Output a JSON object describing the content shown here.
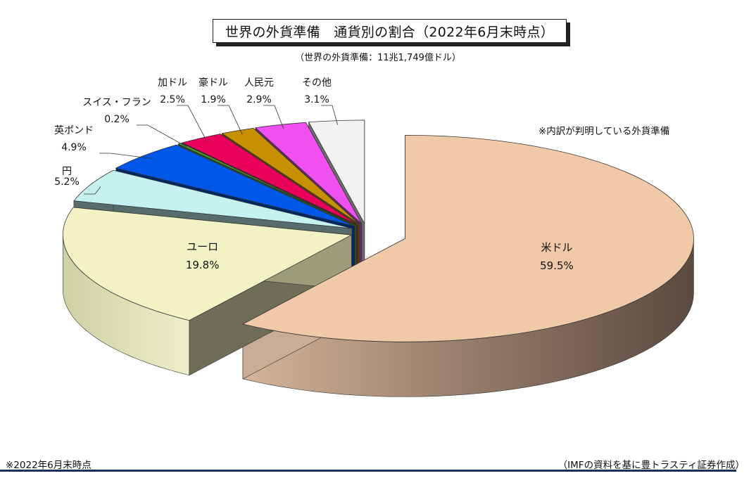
{
  "header": {
    "title": "世界の外貨準備　通貨別の割合（2022年6月末時点）",
    "subtitle": "（世界の外貨準備：11兆1,749億ドル）"
  },
  "note": "※内訳が判明している外貨準備",
  "footer": {
    "left": "※2022年6月末時点",
    "right": "（IMFの資料を基に豊トラスティ証券作成）"
  },
  "chart_data": {
    "type": "pie",
    "style": "3d-exploded",
    "unit": "%",
    "slices": [
      {
        "name": "米ドル",
        "value": 59.5,
        "value_label": "59.5%",
        "color": "#f0c9a8"
      },
      {
        "name": "ユーロ",
        "value": 19.8,
        "value_label": "19.8%",
        "color": "#f2f2c4"
      },
      {
        "name": "円",
        "value": 5.2,
        "value_label": "5.2%",
        "color": "#c5f1ef"
      },
      {
        "name": "英ポンド",
        "value": 4.9,
        "value_label": "4.9%",
        "color": "#0057e8"
      },
      {
        "name": "スイス・フラン",
        "value": 0.2,
        "value_label": "0.2%",
        "color": "#55b030"
      },
      {
        "name": "加ドル",
        "value": 2.5,
        "value_label": "2.5%",
        "color": "#e8005a"
      },
      {
        "name": "豪ドル",
        "value": 1.9,
        "value_label": "1.9%",
        "color": "#c69000"
      },
      {
        "name": "人民元",
        "value": 2.9,
        "value_label": "2.9%",
        "color": "#f050f0"
      },
      {
        "name": "その他",
        "value": 3.1,
        "value_label": "3.1%",
        "color": "#f2f2f2"
      }
    ]
  }
}
